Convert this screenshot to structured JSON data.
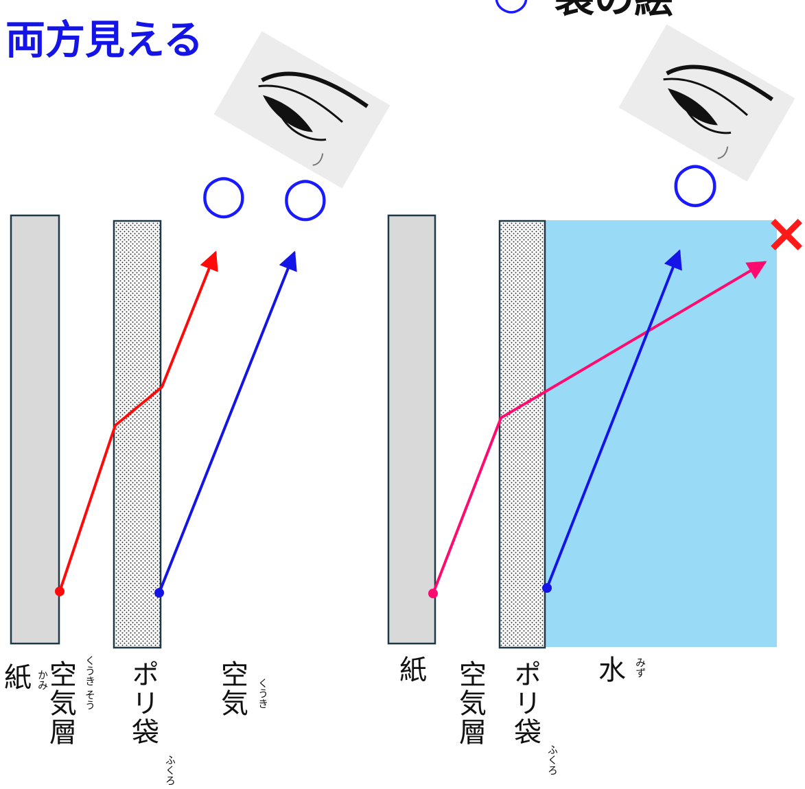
{
  "left_panel": {
    "heading": "両方見える",
    "marks": {
      "eye_circle_a": "○",
      "eye_circle_b": "○"
    },
    "labels": {
      "paper": "紙",
      "paper_ruby": "かみ",
      "air_layer": "空気層",
      "air_layer_ruby": "くうき そう",
      "poly_bag": "ポリ袋",
      "poly_bag_ruby": "ふくろ",
      "air": "空気",
      "air_ruby": "くうき"
    }
  },
  "right_panel": {
    "heading_mark": "○",
    "heading": "袋の絵",
    "marks": {
      "eye_circle": "○",
      "cross": "×"
    },
    "labels": {
      "paper": "紙",
      "air_layer": "空気層",
      "poly_bag": "ポリ袋",
      "poly_bag_ruby": "ふくろ",
      "water": "水",
      "water_ruby": "みず"
    }
  },
  "colors": {
    "heading": "#1414e6",
    "circle": "#1a1aff",
    "paper_fill": "#d9d9d9",
    "paper_stroke": "#1f3848",
    "bag_fill": "#ffffff",
    "bag_dots": "#333333",
    "water_fill": "#99dbf6",
    "ray_paper_left": "#ff0a0a",
    "ray_paper_right": "#ff0a6e",
    "ray_bag": "#1414e6",
    "cross": "#ff1a1a",
    "eye_bg": "#ececec",
    "text": "#111111"
  }
}
